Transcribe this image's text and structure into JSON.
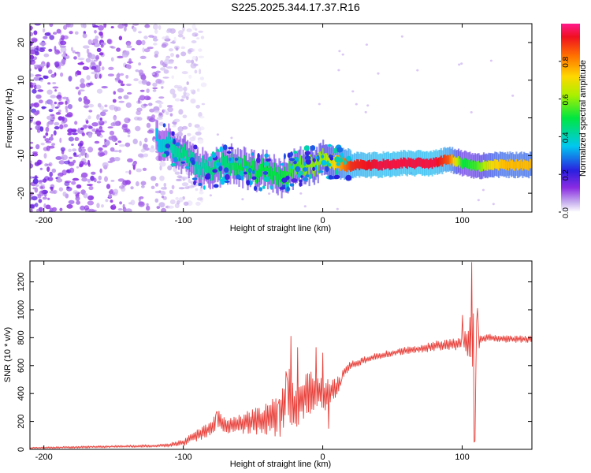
{
  "title": "S225.2025.344.17.37.R16",
  "chart_data": [
    {
      "type": "heatmap",
      "title": "S225.2025.344.17.37.R16",
      "xlabel": "Height of straight line (km)",
      "ylabel": "Frequency (Hz)",
      "xlim": [
        -210,
        150
      ],
      "ylim": [
        -25,
        25
      ],
      "xticks": [
        -200,
        -100,
        0,
        100
      ],
      "xtick_labels": [
        "-200",
        "-100",
        "0",
        "100"
      ],
      "yticks": [
        -20,
        -10,
        0,
        10,
        20
      ],
      "ytick_labels": [
        "-20",
        "-10",
        "0",
        "10",
        "20"
      ],
      "colorbar": {
        "label": "Normalized spectral amplitude",
        "range": [
          0,
          1
        ],
        "ticks": [
          0.0,
          0.2,
          0.4,
          0.6,
          0.8
        ],
        "tick_labels": [
          "0.0",
          "0.2",
          "0.4",
          "0.6",
          "0.8"
        ],
        "colormap": "rainbow"
      },
      "ridge": {
        "x": [
          -120,
          -110,
          -100,
          -90,
          -80,
          -70,
          -60,
          -50,
          -40,
          -30,
          -20,
          -10,
          0,
          10,
          20,
          40,
          60,
          80,
          90,
          100,
          110,
          120,
          130,
          140,
          150
        ],
        "frequency": [
          -6,
          -7,
          -10,
          -13,
          -14,
          -12,
          -13,
          -14,
          -14,
          -16,
          -13,
          -13,
          -11,
          -12,
          -12.5,
          -12.5,
          -12,
          -12,
          -11,
          -12,
          -13,
          -12.5,
          -12.5,
          -12.5,
          -12.5
        ],
        "amplitude": [
          0.35,
          0.4,
          0.45,
          0.4,
          0.45,
          0.45,
          0.5,
          0.5,
          0.5,
          0.5,
          0.55,
          0.6,
          0.6,
          0.75,
          0.9,
          0.95,
          0.95,
          0.95,
          0.85,
          0.5,
          0.55,
          0.7,
          0.75,
          0.75,
          0.75
        ]
      },
      "noise_region": {
        "x_range": [
          -210,
          -100
        ],
        "frequency_range": [
          -25,
          25
        ],
        "amplitude": 0.15
      }
    },
    {
      "type": "line",
      "xlabel": "Height of straight line (km)",
      "ylabel": "SNR (10 * v/v)",
      "xlim": [
        -210,
        150
      ],
      "ylim": [
        0,
        1350
      ],
      "xticks": [
        -200,
        -100,
        0,
        100
      ],
      "xtick_labels": [
        "-200",
        "-100",
        "0",
        "100"
      ],
      "yticks": [
        0,
        200,
        400,
        600,
        800,
        1000,
        1200
      ],
      "ytick_labels": [
        "0",
        "200",
        "400",
        "600",
        "800",
        "1000",
        "1200"
      ],
      "series": [
        {
          "name": "SNR",
          "color": "#e8403a",
          "x": [
            -210,
            -180,
            -150,
            -120,
            -110,
            -100,
            -90,
            -80,
            -75,
            -70,
            -60,
            -50,
            -40,
            -30,
            -25,
            -20,
            -15,
            -10,
            -5,
            0,
            5,
            10,
            15,
            20,
            30,
            40,
            50,
            60,
            70,
            80,
            90,
            100,
            105,
            107,
            109,
            110,
            112,
            115,
            120,
            130,
            140,
            150
          ],
          "y": [
            10,
            15,
            20,
            25,
            30,
            50,
            100,
            150,
            220,
            160,
            180,
            200,
            220,
            250,
            420,
            300,
            380,
            400,
            420,
            380,
            420,
            450,
            550,
            600,
            640,
            670,
            690,
            710,
            720,
            740,
            750,
            760,
            780,
            900,
            300,
            800,
            780,
            790,
            800,
            790,
            790,
            790
          ],
          "noise": [
            5,
            8,
            8,
            10,
            15,
            25,
            40,
            55,
            70,
            60,
            70,
            90,
            120,
            160,
            200,
            180,
            180,
            160,
            130,
            120,
            100,
            70,
            40,
            30,
            25,
            25,
            25,
            25,
            30,
            35,
            40,
            50,
            120,
            360,
            500,
            300,
            60,
            30,
            25,
            25,
            25,
            25
          ],
          "spikes": [
            {
              "x": -76,
              "y": 270
            },
            {
              "x": -72,
              "y": 220
            },
            {
              "x": -32,
              "y": 330
            },
            {
              "x": -26,
              "y": 530
            },
            {
              "x": -23,
              "y": 810
            },
            {
              "x": -18,
              "y": 730
            },
            {
              "x": -5,
              "y": 730
            },
            {
              "x": 0,
              "y": 690
            },
            {
              "x": 4,
              "y": 150
            },
            {
              "x": 13,
              "y": 480
            },
            {
              "x": 100,
              "y": 960
            },
            {
              "x": 107,
              "y": 1340
            },
            {
              "x": 109,
              "y": 60
            },
            {
              "x": 111,
              "y": 1010
            }
          ]
        }
      ]
    }
  ]
}
